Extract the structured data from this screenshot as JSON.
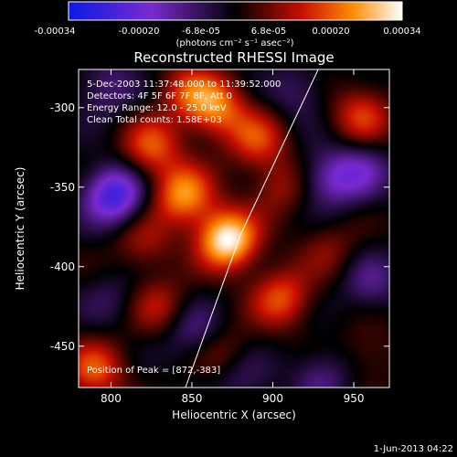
{
  "chart_data": {
    "type": "heatmap",
    "title": "Reconstructed RHESSI Image",
    "xlabel": "Heliocentric X (arcsec)",
    "ylabel": "Heliocentric Y (arcsec)",
    "xlim": [
      780,
      972
    ],
    "ylim": [
      -476,
      -276
    ],
    "x_ticks": [
      "800",
      "850",
      "900",
      "950"
    ],
    "y_ticks": [
      "-300",
      "-350",
      "-400",
      "-450"
    ],
    "colorbar": {
      "range": [
        -0.00034,
        0.00034
      ],
      "tick_labels": [
        "-0.00034",
        "-0.00020",
        "-6.8e-05",
        "6.8e-05",
        "0.00020",
        "0.00034"
      ],
      "unit_label": "(photons cm⁻² s⁻¹ asec⁻²)",
      "colormap": [
        "#0a1ae6",
        "#7a2ad0",
        "#000000",
        "#c81000",
        "#ff8a00",
        "#ffffff"
      ]
    },
    "info_lines": [
      "5-Dec-2003 11:37:48.000 to 11:39:52.000",
      "Detectors: 4F 5F 6F 7F 8F, Att 0",
      "Energy Range: 12.0 - 25.0 keV",
      "Clean    Total counts: 1.58E+03"
    ],
    "peak_label": "Position of Peak = [872,-383]",
    "peak": {
      "x": 872,
      "y": -383
    },
    "limb_line": [
      [
        928,
        -276
      ],
      [
        880,
        -380
      ],
      [
        846,
        -476
      ]
    ],
    "sources": [
      {
        "x": 872,
        "y": -383,
        "value": 0.00034
      },
      {
        "x": 845,
        "y": -355,
        "value": 0.00024
      },
      {
        "x": 825,
        "y": -325,
        "value": 0.00018
      },
      {
        "x": 865,
        "y": -300,
        "value": 0.0002
      },
      {
        "x": 848,
        "y": -290,
        "value": 0.00014
      },
      {
        "x": 890,
        "y": -320,
        "value": 0.00016
      },
      {
        "x": 905,
        "y": -420,
        "value": 0.00018
      },
      {
        "x": 905,
        "y": -350,
        "value": 0.0001
      },
      {
        "x": 955,
        "y": -305,
        "value": 0.00016
      },
      {
        "x": 790,
        "y": -465,
        "value": 0.00018
      },
      {
        "x": 830,
        "y": -425,
        "value": 0.00012
      },
      {
        "x": 820,
        "y": -385,
        "value": 0.0001
      },
      {
        "x": 935,
        "y": -390,
        "value": 8e-05
      },
      {
        "x": 960,
        "y": -455,
        "value": 6e-05
      },
      {
        "x": 870,
        "y": -455,
        "value": 8e-05
      },
      {
        "x": 802,
        "y": -355,
        "value": -0.00026
      },
      {
        "x": 797,
        "y": -287,
        "value": -0.0001
      },
      {
        "x": 935,
        "y": -345,
        "value": -0.00014
      },
      {
        "x": 955,
        "y": -340,
        "value": -0.00012
      },
      {
        "x": 960,
        "y": -410,
        "value": -0.0001
      },
      {
        "x": 850,
        "y": -440,
        "value": -0.0001
      },
      {
        "x": 880,
        "y": -470,
        "value": -8e-05
      },
      {
        "x": 930,
        "y": -470,
        "value": -0.0001
      },
      {
        "x": 915,
        "y": -290,
        "value": -8e-05
      },
      {
        "x": 800,
        "y": -420,
        "value": -6e-05
      }
    ]
  },
  "footer": {
    "date": "1-Jun-2013 04:22"
  }
}
